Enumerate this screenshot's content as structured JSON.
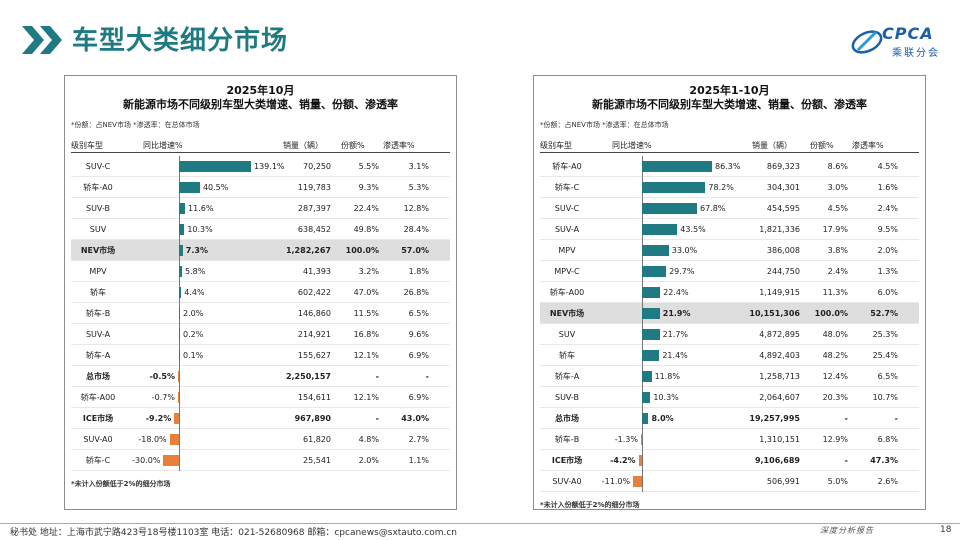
{
  "title": "车型大类细分市场",
  "logo": {
    "top": "CPCA",
    "bottom": "乘联分会"
  },
  "colors": {
    "accent": "#1f7a82",
    "positive_bar": "#1f7a82",
    "negative_bar": "#e8803a"
  },
  "panels": [
    {
      "title1": "2025年10月",
      "title2": "新能源市场不同级别车型大类增速、销量、份额、渗透率",
      "note": "*份额：占NEV市场  *渗透率：在总体市场",
      "headers": {
        "segment": "级别车型",
        "growth": "同比增速%",
        "volume": "销量（辆）",
        "share": "份额%",
        "penetration": "渗透率%"
      },
      "axis_max": 139.1,
      "rows": [
        {
          "segment": "SUV-C",
          "growth": 139.1,
          "growth_label": "139.1%",
          "volume": "70,250",
          "share": "5.5%",
          "penetration": "3.1%",
          "bold": false,
          "hl": false
        },
        {
          "segment": "轿车-A0",
          "growth": 40.5,
          "growth_label": "40.5%",
          "volume": "119,783",
          "share": "9.3%",
          "penetration": "5.3%",
          "bold": false,
          "hl": false
        },
        {
          "segment": "SUV-B",
          "growth": 11.6,
          "growth_label": "11.6%",
          "volume": "287,397",
          "share": "22.4%",
          "penetration": "12.8%",
          "bold": false,
          "hl": false
        },
        {
          "segment": "SUV",
          "growth": 10.3,
          "growth_label": "10.3%",
          "volume": "638,452",
          "share": "49.8%",
          "penetration": "28.4%",
          "bold": false,
          "hl": false
        },
        {
          "segment": "NEV市场",
          "growth": 7.3,
          "growth_label": "7.3%",
          "volume": "1,282,267",
          "share": "100.0%",
          "penetration": "57.0%",
          "bold": true,
          "hl": true
        },
        {
          "segment": "MPV",
          "growth": 5.8,
          "growth_label": "5.8%",
          "volume": "41,393",
          "share": "3.2%",
          "penetration": "1.8%",
          "bold": false,
          "hl": false
        },
        {
          "segment": "轿车",
          "growth": 4.4,
          "growth_label": "4.4%",
          "volume": "602,422",
          "share": "47.0%",
          "penetration": "26.8%",
          "bold": false,
          "hl": false
        },
        {
          "segment": "轿车-B",
          "growth": 2.0,
          "growth_label": "2.0%",
          "volume": "146,860",
          "share": "11.5%",
          "penetration": "6.5%",
          "bold": false,
          "hl": false
        },
        {
          "segment": "SUV-A",
          "growth": 0.2,
          "growth_label": "0.2%",
          "volume": "214,921",
          "share": "16.8%",
          "penetration": "9.6%",
          "bold": false,
          "hl": false
        },
        {
          "segment": "轿车-A",
          "growth": 0.1,
          "growth_label": "0.1%",
          "volume": "155,627",
          "share": "12.1%",
          "penetration": "6.9%",
          "bold": false,
          "hl": false
        },
        {
          "segment": "总市场",
          "growth": -0.5,
          "growth_label": "-0.5%",
          "volume": "2,250,157",
          "share": "-",
          "penetration": "-",
          "bold": true,
          "hl": false
        },
        {
          "segment": "轿车-A00",
          "growth": -0.7,
          "growth_label": "-0.7%",
          "volume": "154,611",
          "share": "12.1%",
          "penetration": "6.9%",
          "bold": false,
          "hl": false
        },
        {
          "segment": "ICE市场",
          "growth": -9.2,
          "growth_label": "-9.2%",
          "volume": "967,890",
          "share": "-",
          "penetration": "43.0%",
          "bold": true,
          "hl": false
        },
        {
          "segment": "SUV-A0",
          "growth": -18.0,
          "growth_label": "-18.0%",
          "volume": "61,820",
          "share": "4.8%",
          "penetration": "2.7%",
          "bold": false,
          "hl": false
        },
        {
          "segment": "轿车-C",
          "growth": -30.0,
          "growth_label": "-30.0%",
          "volume": "25,541",
          "share": "2.0%",
          "penetration": "1.1%",
          "bold": false,
          "hl": false
        }
      ],
      "footnote": "*未计入份额低于2%的细分市场"
    },
    {
      "title1": "2025年1-10月",
      "title2": "新能源市场不同级别车型大类增速、销量、份额、渗透率",
      "note": "*份额：占NEV市场  *渗透率：在总体市场",
      "headers": {
        "segment": "级别车型",
        "growth": "同比增速%",
        "volume": "销量（辆）",
        "share": "份额%",
        "penetration": "渗透率%"
      },
      "axis_max": 86.3,
      "rows": [
        {
          "segment": "轿车-A0",
          "growth": 86.3,
          "growth_label": "86.3%",
          "volume": "869,323",
          "share": "8.6%",
          "penetration": "4.5%",
          "bold": false,
          "hl": false
        },
        {
          "segment": "轿车-C",
          "growth": 78.2,
          "growth_label": "78.2%",
          "volume": "304,301",
          "share": "3.0%",
          "penetration": "1.6%",
          "bold": false,
          "hl": false
        },
        {
          "segment": "SUV-C",
          "growth": 67.8,
          "growth_label": "67.8%",
          "volume": "454,595",
          "share": "4.5%",
          "penetration": "2.4%",
          "bold": false,
          "hl": false
        },
        {
          "segment": "SUV-A",
          "growth": 43.5,
          "growth_label": "43.5%",
          "volume": "1,821,336",
          "share": "17.9%",
          "penetration": "9.5%",
          "bold": false,
          "hl": false
        },
        {
          "segment": "MPV",
          "growth": 33.0,
          "growth_label": "33.0%",
          "volume": "386,008",
          "share": "3.8%",
          "penetration": "2.0%",
          "bold": false,
          "hl": false
        },
        {
          "segment": "MPV-C",
          "growth": 29.7,
          "growth_label": "29.7%",
          "volume": "244,750",
          "share": "2.4%",
          "penetration": "1.3%",
          "bold": false,
          "hl": false
        },
        {
          "segment": "轿车-A00",
          "growth": 22.4,
          "growth_label": "22.4%",
          "volume": "1,149,915",
          "share": "11.3%",
          "penetration": "6.0%",
          "bold": false,
          "hl": false
        },
        {
          "segment": "NEV市场",
          "growth": 21.9,
          "growth_label": "21.9%",
          "volume": "10,151,306",
          "share": "100.0%",
          "penetration": "52.7%",
          "bold": true,
          "hl": true
        },
        {
          "segment": "SUV",
          "growth": 21.7,
          "growth_label": "21.7%",
          "volume": "4,872,895",
          "share": "48.0%",
          "penetration": "25.3%",
          "bold": false,
          "hl": false
        },
        {
          "segment": "轿车",
          "growth": 21.4,
          "growth_label": "21.4%",
          "volume": "4,892,403",
          "share": "48.2%",
          "penetration": "25.4%",
          "bold": false,
          "hl": false
        },
        {
          "segment": "轿车-A",
          "growth": 11.8,
          "growth_label": "11.8%",
          "volume": "1,258,713",
          "share": "12.4%",
          "penetration": "6.5%",
          "bold": false,
          "hl": false
        },
        {
          "segment": "SUV-B",
          "growth": 10.3,
          "growth_label": "10.3%",
          "volume": "2,064,607",
          "share": "20.3%",
          "penetration": "10.7%",
          "bold": false,
          "hl": false
        },
        {
          "segment": "总市场",
          "growth": 8.0,
          "growth_label": "8.0%",
          "volume": "19,257,995",
          "share": "-",
          "penetration": "-",
          "bold": true,
          "hl": false
        },
        {
          "segment": "轿车-B",
          "growth": -1.3,
          "growth_label": "-1.3%",
          "volume": "1,310,151",
          "share": "12.9%",
          "penetration": "6.8%",
          "bold": false,
          "hl": false
        },
        {
          "segment": "ICE市场",
          "growth": -4.2,
          "growth_label": "-4.2%",
          "volume": "9,106,689",
          "share": "-",
          "penetration": "47.3%",
          "bold": true,
          "hl": false
        },
        {
          "segment": "SUV-A0",
          "growth": -11.0,
          "growth_label": "-11.0%",
          "volume": "506,991",
          "share": "5.0%",
          "penetration": "2.6%",
          "bold": false,
          "hl": false
        }
      ],
      "footnote": "*未计入份额低于2%的细分市场"
    }
  ],
  "footer": {
    "text": "秘书处  地址：上海市武宁路423号18号楼1103室  电话：021-52680968  邮箱：cpcanews@sxtauto.com.cn",
    "right": "深度分析报告",
    "page": "18"
  }
}
